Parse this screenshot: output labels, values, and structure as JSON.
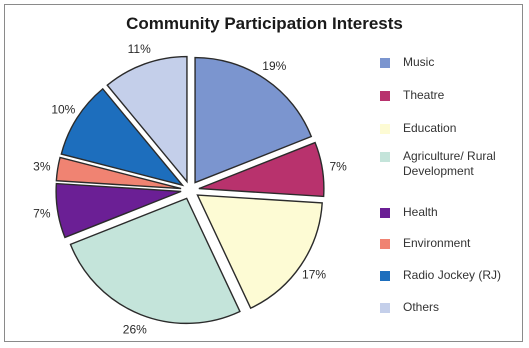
{
  "chart_data": {
    "type": "pie",
    "title": "Community Participation Interests",
    "categories": [
      "Music",
      "Theatre",
      "Education",
      "Agriculture/ Rural\nDevelopment",
      "Health",
      "Environment",
      "Radio Jockey (RJ)",
      "Others"
    ],
    "values": [
      19,
      7,
      17,
      26,
      7,
      3,
      10,
      11
    ],
    "value_labels": [
      "19%",
      "7%",
      "17%",
      "26%",
      "7%",
      "3%",
      "10%",
      "11%"
    ],
    "colors": [
      "#7b95cf",
      "#b8326d",
      "#fdfbd4",
      "#c4e4da",
      "#6b1f95",
      "#f08372",
      "#1d6ebd",
      "#c4cfea"
    ],
    "legend": "right"
  }
}
